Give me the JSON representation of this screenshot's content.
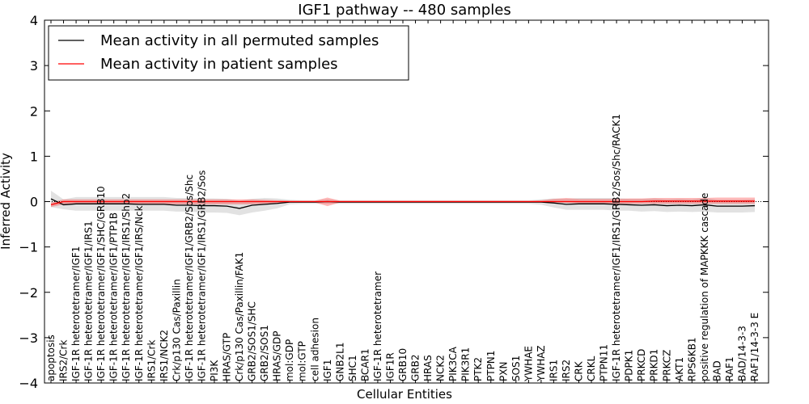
{
  "chart_data": {
    "type": "line",
    "title": "IGF1 pathway -- 480 samples",
    "xlabel": "Cellular Entities",
    "ylabel": "Inferred Activity",
    "ylim": [
      -4,
      4
    ],
    "yticks": [
      -4,
      -3,
      -2,
      -1,
      0,
      1,
      2,
      3,
      4
    ],
    "legend_position": "top-left",
    "categories": [
      "apoptosis",
      "IRS2/Crk",
      "IGF-1R heterotetramer/IGF1",
      "IGF-1R heterotetramer/IGF1/IRS1",
      "IGF-1R heterotetramer/IGF1/SHC/GRB10",
      "IGF-1R heterotetramer/IGF1/PTP1B",
      "IGF-1R heterotetramer/IGF1/IRS1/Shp2",
      "IGF-1R heterotetramer/IGF1/IRS/Nck",
      "IRS1/Crk",
      "IRS1/NCK2",
      "Crk/p130 Cas/Paxillin",
      "IGF-1R heterotetramer/IGF1/GRB2/Sos/Shc",
      "IGF-1R heterotetramer/IGF1/IRS1/GRB2/Sos",
      "PI3K",
      "HRAS/GTP",
      "Crk/p130 Cas/Paxillin/FAK1",
      "GRB2/SOS1/SHC",
      "GRB2/SOS1",
      "HRAS/GDP",
      "mol:GDP",
      "mol:GTP",
      "cell adhesion",
      "IGF1",
      "GNB2L1",
      "SHC1",
      "BCAR1",
      "IGF-1R heterotetramer",
      "IGF1R",
      "GRB10",
      "GRB2",
      "HRAS",
      "NCK2",
      "PIK3CA",
      "PIK3R1",
      "PTK2",
      "PTPN1",
      "PXN",
      "SOS1",
      "YWHAE",
      "YWHAZ",
      "IRS1",
      "IRS2",
      "CRK",
      "CRKL",
      "PTPN11",
      "IGF-1R heterotetramer/IGF1/IRS1/GRB2/Sos/Shc/RACK1",
      "PDPK1",
      "PRKCD",
      "PRKD1",
      "PRKCZ",
      "AKT1",
      "RPS6KB1",
      "positive regulation of MAPKKK cascade",
      "BAD",
      "RAF1",
      "BAD/14-3-3",
      "RAF1/14-3-3 E"
    ],
    "series": [
      {
        "name": "Mean activity in all permuted samples",
        "color": "#000000",
        "values": [
          0.06,
          -0.07,
          -0.05,
          -0.05,
          -0.05,
          -0.05,
          -0.05,
          -0.06,
          -0.06,
          -0.06,
          -0.08,
          -0.08,
          -0.09,
          -0.09,
          -0.1,
          -0.15,
          -0.08,
          -0.06,
          -0.04,
          -0.01,
          -0.01,
          -0.01,
          0.0,
          -0.01,
          -0.01,
          -0.01,
          -0.01,
          -0.01,
          -0.01,
          -0.01,
          -0.01,
          -0.01,
          -0.01,
          -0.01,
          -0.01,
          -0.01,
          -0.01,
          -0.01,
          -0.01,
          -0.01,
          -0.03,
          -0.06,
          -0.05,
          -0.05,
          -0.05,
          -0.06,
          -0.07,
          -0.08,
          -0.07,
          -0.09,
          -0.08,
          -0.09,
          -0.07,
          -0.1,
          -0.1,
          -0.1,
          -0.09
        ],
        "band_lower": [
          -0.12,
          -0.17,
          -0.2,
          -0.2,
          -0.2,
          -0.2,
          -0.2,
          -0.2,
          -0.2,
          -0.2,
          -0.22,
          -0.22,
          -0.24,
          -0.24,
          -0.25,
          -0.3,
          -0.24,
          -0.2,
          -0.15,
          -0.06,
          -0.05,
          -0.05,
          -0.05,
          -0.05,
          -0.05,
          -0.05,
          -0.05,
          -0.05,
          -0.05,
          -0.05,
          -0.05,
          -0.05,
          -0.05,
          -0.05,
          -0.05,
          -0.05,
          -0.05,
          -0.05,
          -0.05,
          -0.07,
          -0.13,
          -0.18,
          -0.18,
          -0.18,
          -0.18,
          -0.2,
          -0.2,
          -0.22,
          -0.21,
          -0.23,
          -0.22,
          -0.23,
          -0.22,
          -0.24,
          -0.24,
          -0.24,
          -0.23
        ],
        "band_upper": [
          0.24,
          0.05,
          0.1,
          0.1,
          0.1,
          0.1,
          0.1,
          0.1,
          0.1,
          0.1,
          0.08,
          0.08,
          0.07,
          0.07,
          0.06,
          0.02,
          0.06,
          0.08,
          0.07,
          0.04,
          0.03,
          0.03,
          0.05,
          0.03,
          0.03,
          0.03,
          0.03,
          0.03,
          0.03,
          0.03,
          0.03,
          0.03,
          0.03,
          0.03,
          0.03,
          0.03,
          0.03,
          0.03,
          0.03,
          0.05,
          0.07,
          0.06,
          0.08,
          0.08,
          0.08,
          0.08,
          0.06,
          0.06,
          0.07,
          0.05,
          0.06,
          0.05,
          0.08,
          0.04,
          0.04,
          0.04,
          0.05
        ]
      },
      {
        "name": "Mean activity in patient samples",
        "color": "#ff0000",
        "values": [
          -0.07,
          0.0,
          0.0,
          0.0,
          0.0,
          0.0,
          0.0,
          0.0,
          0.0,
          0.0,
          0.0,
          0.0,
          0.0,
          0.0,
          0.0,
          0.0,
          0.0,
          0.0,
          0.0,
          0.0,
          0.0,
          0.0,
          0.0,
          0.0,
          0.0,
          0.0,
          0.0,
          0.0,
          0.0,
          0.0,
          0.0,
          0.0,
          0.0,
          0.0,
          0.0,
          0.0,
          0.0,
          0.0,
          0.0,
          0.0,
          0.0,
          0.0,
          0.0,
          0.0,
          0.0,
          0.0,
          0.0,
          0.0,
          0.01,
          0.01,
          0.01,
          0.01,
          0.01,
          0.01,
          0.01,
          0.01,
          0.01
        ],
        "band_lower": [
          -0.12,
          -0.06,
          -0.06,
          -0.06,
          -0.06,
          -0.06,
          -0.06,
          -0.06,
          -0.06,
          -0.06,
          -0.06,
          -0.06,
          -0.06,
          -0.06,
          -0.06,
          -0.06,
          -0.06,
          -0.05,
          -0.04,
          -0.02,
          -0.02,
          -0.02,
          -0.1,
          -0.02,
          -0.02,
          -0.02,
          -0.02,
          -0.02,
          -0.02,
          -0.02,
          -0.02,
          -0.02,
          -0.02,
          -0.02,
          -0.02,
          -0.02,
          -0.02,
          -0.02,
          -0.02,
          -0.02,
          -0.02,
          -0.03,
          -0.04,
          -0.05,
          -0.05,
          -0.05,
          -0.05,
          -0.05,
          -0.05,
          -0.05,
          -0.05,
          -0.05,
          -0.05,
          -0.05,
          -0.05,
          -0.05,
          -0.05
        ],
        "band_upper": [
          -0.02,
          0.05,
          0.05,
          0.05,
          0.05,
          0.05,
          0.05,
          0.05,
          0.05,
          0.05,
          0.05,
          0.05,
          0.05,
          0.05,
          0.05,
          0.05,
          0.05,
          0.04,
          0.03,
          0.02,
          0.02,
          0.02,
          0.09,
          0.02,
          0.02,
          0.02,
          0.02,
          0.02,
          0.02,
          0.02,
          0.02,
          0.02,
          0.02,
          0.02,
          0.02,
          0.02,
          0.02,
          0.02,
          0.02,
          0.03,
          0.06,
          0.08,
          0.06,
          0.06,
          0.06,
          0.06,
          0.07,
          0.07,
          0.08,
          0.08,
          0.08,
          0.08,
          0.08,
          0.09,
          0.09,
          0.09,
          0.09
        ]
      }
    ]
  }
}
